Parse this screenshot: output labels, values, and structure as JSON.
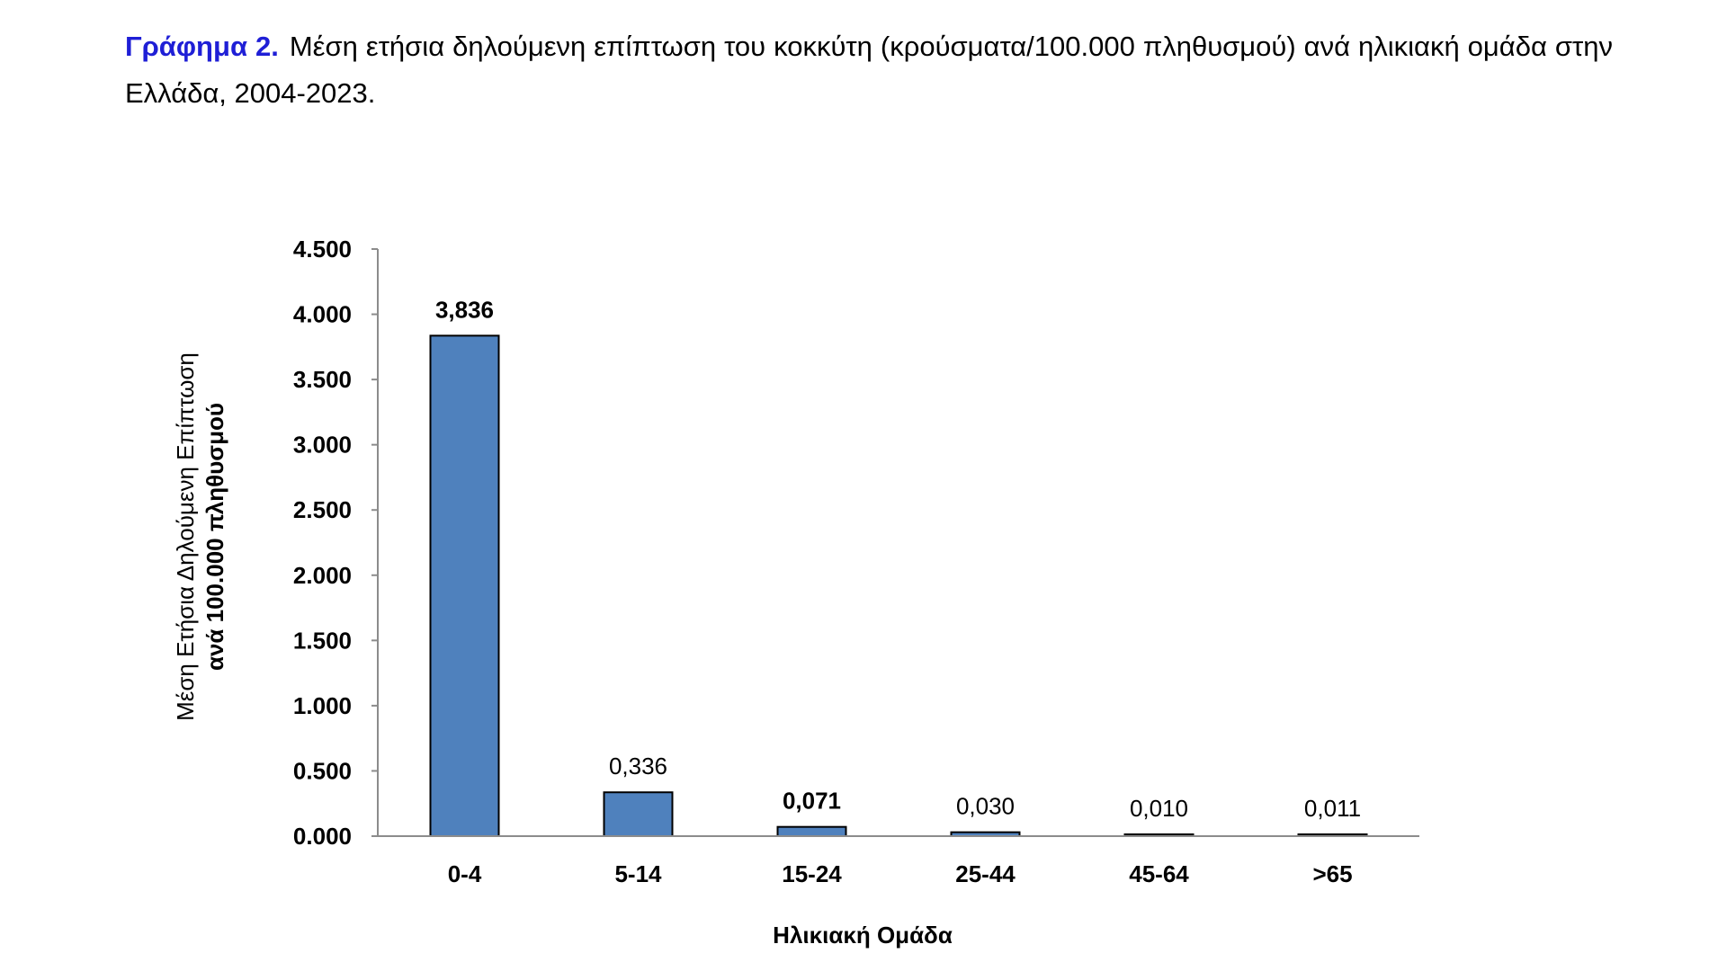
{
  "caption": {
    "label": "Γράφημα 2.",
    "text": "Μέση ετήσια δηλούμενη επίπτωση του κοκκύτη (κρούσματα/100.000 πληθυσμού) ανά ηλικιακή ομάδα στην Ελλάδα, 2004-2023."
  },
  "chart_data": {
    "type": "bar",
    "categories": [
      "0-4",
      "5-14",
      "15-24",
      "25-44",
      "45-64",
      ">65"
    ],
    "values": [
      3.836,
      0.336,
      0.071,
      0.03,
      0.01,
      0.011
    ],
    "value_labels": [
      "3,836",
      "0,336",
      "0,071",
      "0,030",
      "0,010",
      "0,011"
    ],
    "bold_value_labels": [
      true,
      false,
      true,
      false,
      false,
      false
    ],
    "xlabel": "Ηλικιακή Ομάδα",
    "ylabel_line1": "Μέση Ετήσια Δηλούμενη Επίπτωση",
    "ylabel_line2": "ανά 100.000 πληθυσμού",
    "ylim": [
      0,
      4.5
    ],
    "yticks": [
      0,
      0.5,
      1.0,
      1.5,
      2.0,
      2.5,
      3.0,
      3.5,
      4.0,
      4.5
    ],
    "ytick_labels": [
      "0.000",
      "0.500",
      "1.000",
      "1.500",
      "2.000",
      "2.500",
      "3.000",
      "3.500",
      "4.000",
      "4.500"
    ],
    "grid": false,
    "legend": "none",
    "bar_color": "#4f81bd",
    "bar_edge_color": "#000000"
  }
}
